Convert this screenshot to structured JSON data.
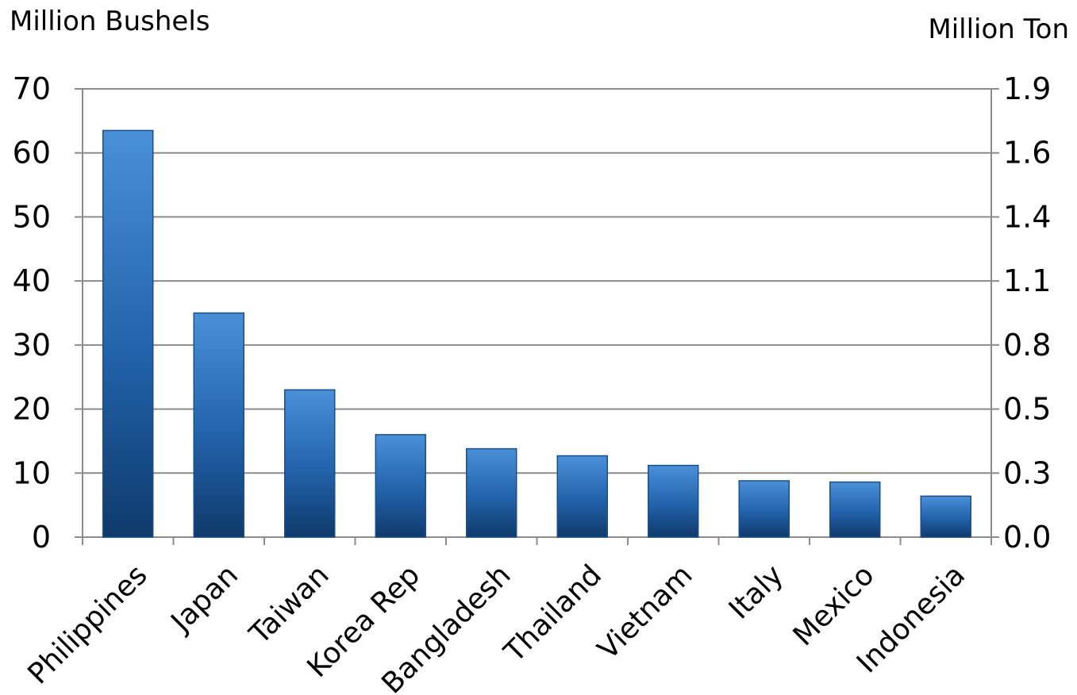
{
  "chart_data": {
    "type": "bar",
    "left_axis_label": "Million Bushels",
    "right_axis_label": "Million Ton",
    "categories": [
      "Philippines",
      "Japan",
      "Taiwan",
      "Korea Rep",
      "Bangladesh",
      "Thailand",
      "Vietnam",
      "Italy",
      "Mexico",
      "Indonesia"
    ],
    "values": [
      63.5,
      35,
      23,
      16,
      13.8,
      12.7,
      11.2,
      8.8,
      8.6,
      6.4
    ],
    "ylim": [
      0,
      70
    ],
    "left_ticks": [
      "0",
      "10",
      "20",
      "30",
      "40",
      "50",
      "60",
      "70"
    ],
    "right_ticks": [
      "0.0",
      "0.3",
      "0.5",
      "0.8",
      "1.1",
      "1.4",
      "1.6",
      "1.9"
    ],
    "grid": true,
    "bar_color": "#2a6db8"
  }
}
